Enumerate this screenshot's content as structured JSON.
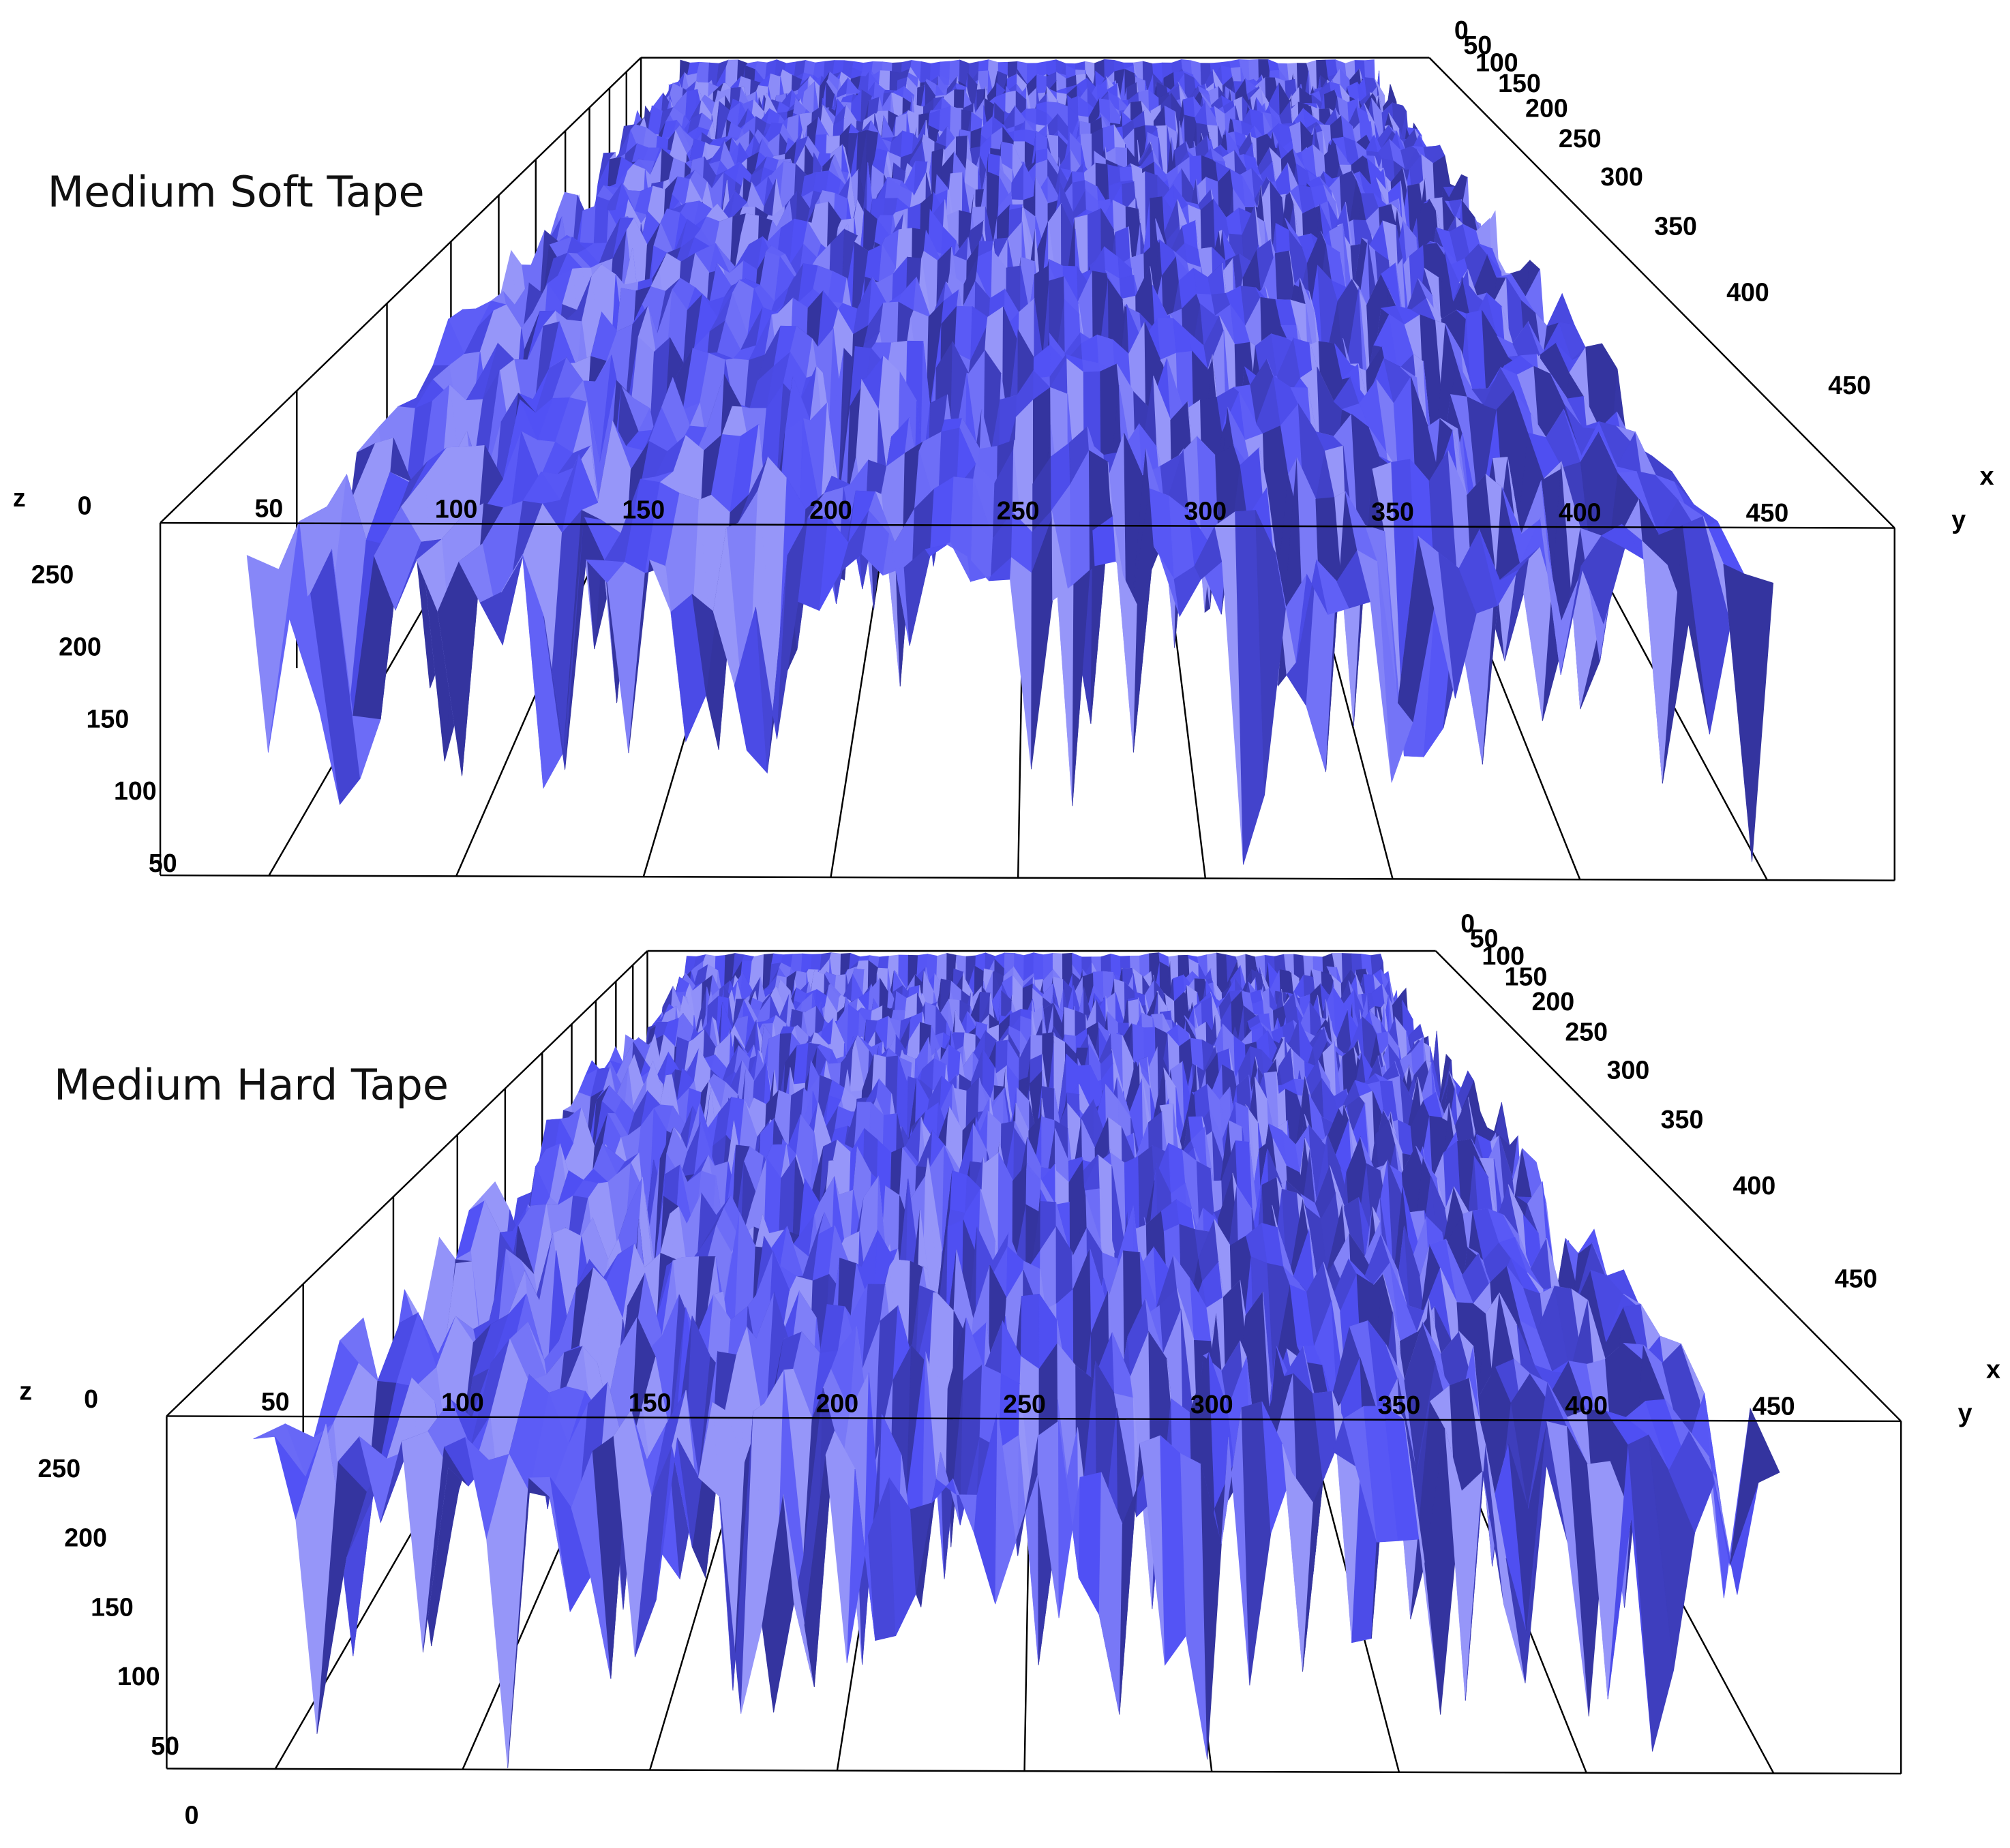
{
  "chart_data": [
    {
      "type": "surface",
      "title": "Medium Soft Tape",
      "xlabel": "x",
      "ylabel": "y",
      "zlabel": "z",
      "corner_label": "0",
      "xlim": [
        0,
        500
      ],
      "xticks": [
        0,
        50,
        100,
        150,
        200,
        250,
        300,
        350,
        400,
        450
      ],
      "ylim": [
        21,
        484
      ],
      "yticks": [
        50,
        100,
        150,
        200,
        250,
        300,
        350,
        400,
        450
      ],
      "zlim": [
        43,
        287
      ],
      "zticks": [
        250,
        200,
        150,
        100,
        50
      ],
      "color": "#5050f5"
    },
    {
      "type": "surface",
      "title": "Medium Hard Tape",
      "xlabel": "x",
      "ylabel": "y",
      "zlabel": "z",
      "corner_label": "0",
      "xlim": [
        0,
        500
      ],
      "xticks": [
        0,
        50,
        100,
        150,
        200,
        250,
        300,
        350,
        400,
        450
      ],
      "ylim": [
        21,
        484
      ],
      "yticks": [
        50,
        100,
        150,
        200,
        250,
        300,
        350,
        400,
        450
      ],
      "zlim": [
        35,
        289
      ],
      "zticks": [
        250,
        200,
        150,
        100,
        50,
        0
      ],
      "color": "#5050f5"
    }
  ]
}
